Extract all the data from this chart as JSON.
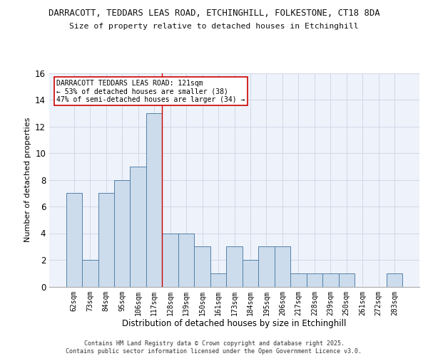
{
  "title_line1": "DARRACOTT, TEDDARS LEAS ROAD, ETCHINGHILL, FOLKESTONE, CT18 8DA",
  "title_line2": "Size of property relative to detached houses in Etchinghill",
  "xlabel": "Distribution of detached houses by size in Etchinghill",
  "ylabel": "Number of detached properties",
  "categories": [
    "62sqm",
    "73sqm",
    "84sqm",
    "95sqm",
    "106sqm",
    "117sqm",
    "128sqm",
    "139sqm",
    "150sqm",
    "161sqm",
    "173sqm",
    "184sqm",
    "195sqm",
    "206sqm",
    "217sqm",
    "228sqm",
    "239sqm",
    "250sqm",
    "261sqm",
    "272sqm",
    "283sqm"
  ],
  "values": [
    7,
    2,
    7,
    8,
    9,
    13,
    4,
    4,
    3,
    1,
    3,
    2,
    3,
    3,
    1,
    1,
    1,
    1,
    0,
    0,
    1
  ],
  "bar_color": "#ccdcec",
  "bar_edge_color": "#5580aa",
  "bar_linewidth": 0.7,
  "grid_color": "#d0d8e8",
  "background_color": "#eef2fa",
  "red_line_index": 5,
  "annotation_text": "DARRACOTT TEDDARS LEAS ROAD: 121sqm\n← 53% of detached houses are smaller (38)\n47% of semi-detached houses are larger (34) →",
  "annotation_box_color": "#ffffff",
  "annotation_box_edge_color": "#cc0000",
  "footer_text": "Contains HM Land Registry data © Crown copyright and database right 2025.\nContains public sector information licensed under the Open Government Licence v3.0.",
  "ylim": [
    0,
    16
  ],
  "yticks": [
    0,
    2,
    4,
    6,
    8,
    10,
    12,
    14,
    16
  ]
}
